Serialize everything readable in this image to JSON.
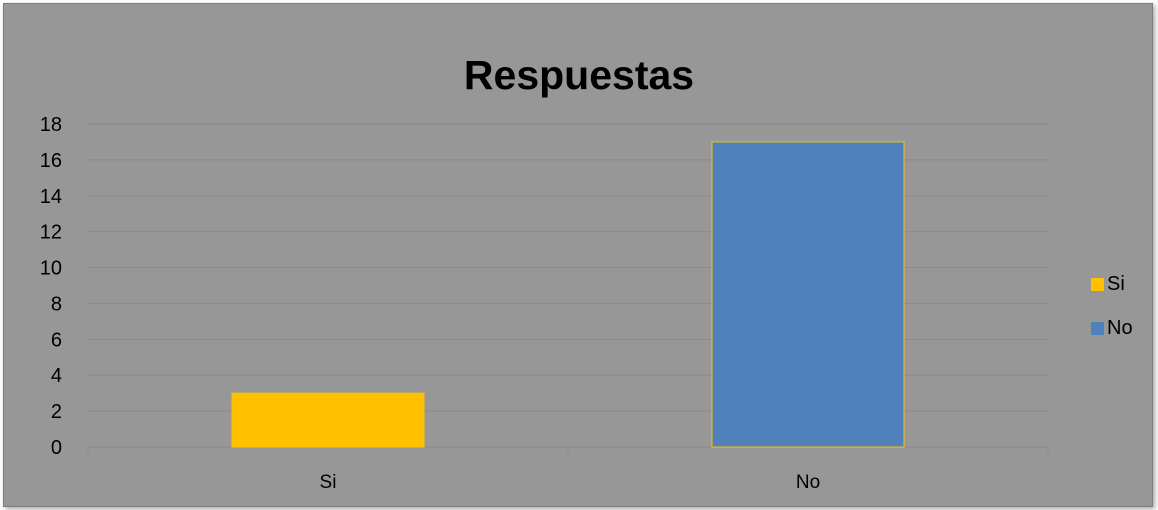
{
  "chart_data": {
    "type": "bar",
    "title": "Respuestas",
    "categories": [
      "Si",
      "No"
    ],
    "values": [
      3,
      17
    ],
    "colors": [
      "#FFC000",
      "#4F81BD"
    ],
    "ylim": [
      0,
      18
    ],
    "yticks": [
      "0",
      "2",
      "4",
      "6",
      "8",
      "10",
      "12",
      "14",
      "16",
      "18"
    ],
    "grid": true,
    "legend_position": "right",
    "legend": [
      {
        "label": "Si",
        "color": "#FFC000"
      },
      {
        "label": "No",
        "color": "#4F81BD"
      }
    ]
  }
}
